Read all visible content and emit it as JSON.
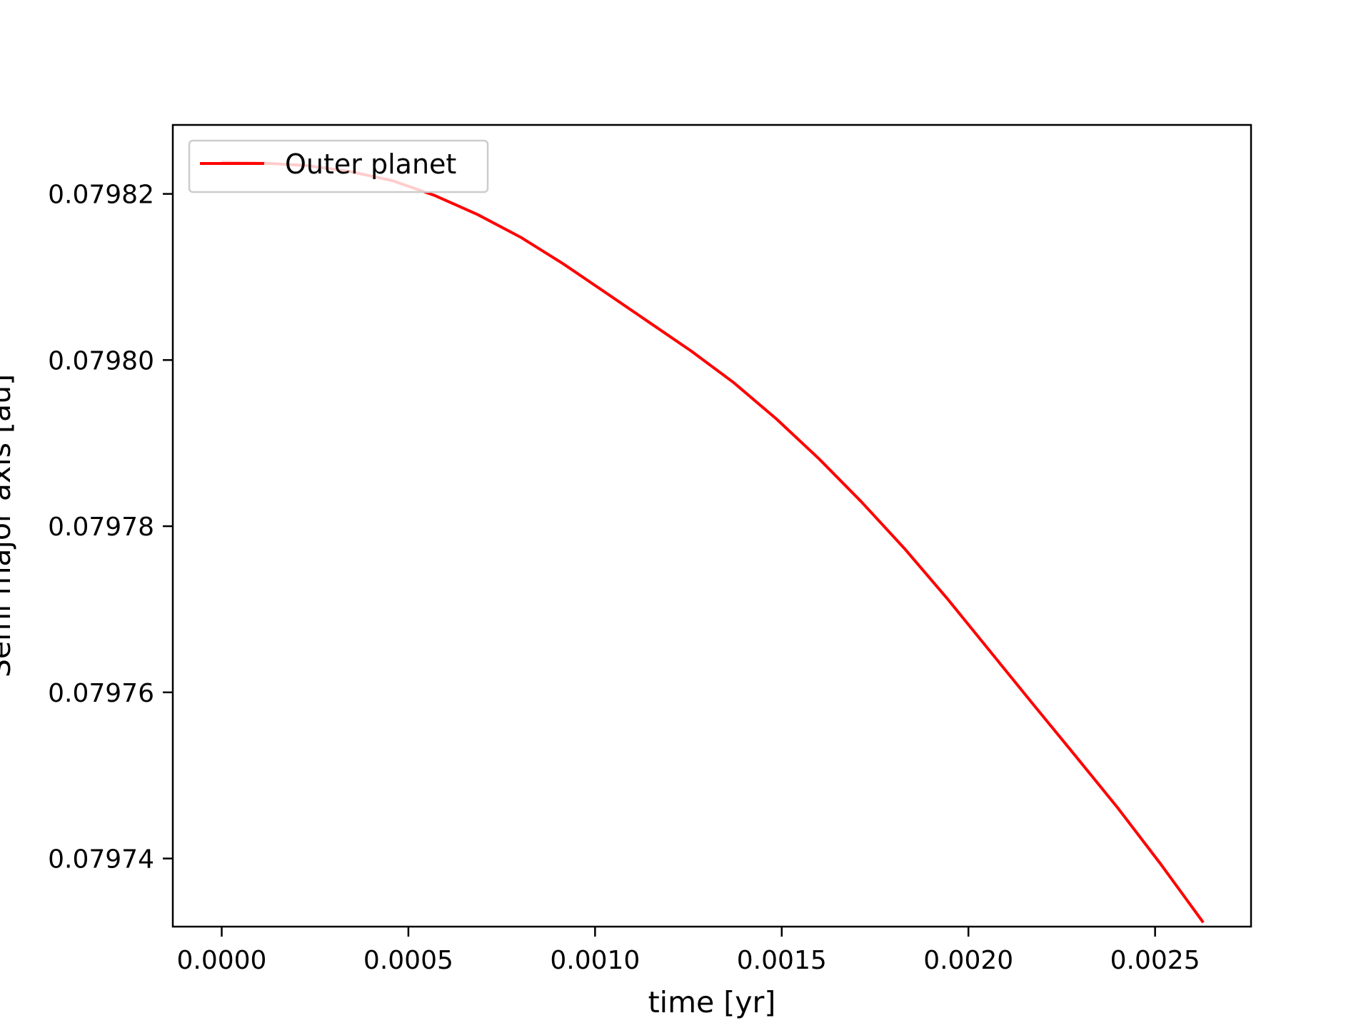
{
  "chart_data": {
    "type": "line",
    "title": "",
    "xlabel": "time [yr]",
    "ylabel": "Semi major axis [au]",
    "xlim": [
      -0.000131,
      0.002757
    ],
    "ylim": [
      0.0797318,
      0.0798283
    ],
    "x_ticks": [
      0.0,
      0.0005,
      0.001,
      0.0015,
      0.002,
      0.0025
    ],
    "x_tick_labels": [
      "0.0000",
      "0.0005",
      "0.0010",
      "0.0015",
      "0.0020",
      "0.0025"
    ],
    "y_ticks": [
      0.07974,
      0.07976,
      0.07978,
      0.0798,
      0.07982
    ],
    "y_tick_labels": [
      "0.07974",
      "0.07976",
      "0.07978",
      "0.07980",
      "0.07982"
    ],
    "grid": false,
    "legend": {
      "position": "upper left"
    },
    "series": [
      {
        "name": "Outer planet",
        "color": "#ff0000",
        "x": [
          0.0,
          0.000114,
          0.000229,
          0.000343,
          0.000457,
          0.000571,
          0.000686,
          0.0008,
          0.000914,
          0.001029,
          0.001143,
          0.001257,
          0.001371,
          0.001486,
          0.0016,
          0.001714,
          0.001829,
          0.001943,
          0.002057,
          0.002171,
          0.002286,
          0.0024,
          0.002514,
          0.002629
        ],
        "y": [
          0.0798238,
          0.0798237,
          0.0798234,
          0.0798227,
          0.0798216,
          0.0798198,
          0.0798175,
          0.0798148,
          0.0798116,
          0.0798081,
          0.0798046,
          0.0798011,
          0.0797973,
          0.0797929,
          0.0797881,
          0.0797829,
          0.0797773,
          0.0797713,
          0.079765,
          0.0797587,
          0.0797524,
          0.0797461,
          0.0797394,
          0.0797323
        ]
      }
    ]
  }
}
